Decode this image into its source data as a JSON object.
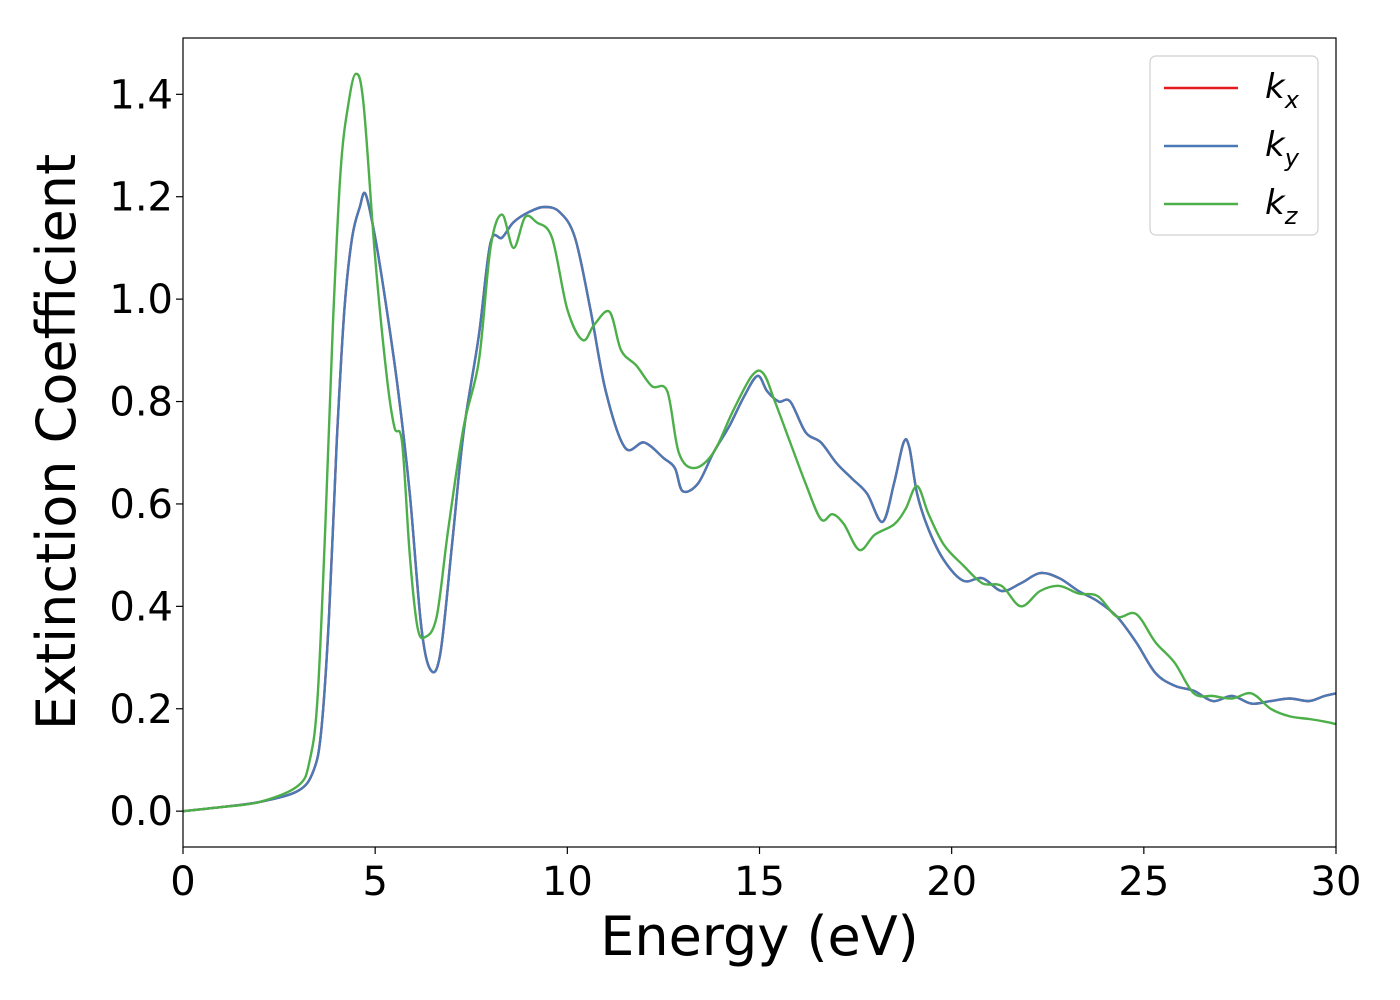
{
  "chart_data": {
    "type": "line",
    "title": "",
    "xlabel": "Energy (eV)",
    "ylabel": "Extinction Coefficient",
    "xlim": [
      0,
      30
    ],
    "ylim": [
      -0.07,
      1.51
    ],
    "xticks": [
      0,
      5,
      10,
      15,
      20,
      25,
      30
    ],
    "xtick_labels": [
      "0",
      "5",
      "10",
      "15",
      "20",
      "25",
      "30"
    ],
    "yticks": [
      0.0,
      0.2,
      0.4,
      0.6,
      0.8,
      1.0,
      1.2,
      1.4
    ],
    "ytick_labels": [
      "0.0",
      "0.2",
      "0.4",
      "0.6",
      "0.8",
      "1.0",
      "1.2",
      "1.4"
    ],
    "grid": false,
    "legend_position": "top-right",
    "series": [
      {
        "name": "k_x",
        "label_main": "k",
        "label_sub": "x",
        "color": "#e41a1c",
        "x": [
          0,
          1,
          2,
          3,
          3.4,
          3.6,
          3.8,
          4.0,
          4.2,
          4.4,
          4.6,
          4.75,
          5.0,
          5.3,
          5.6,
          5.9,
          6.2,
          6.45,
          6.7,
          7.0,
          7.3,
          7.7,
          8.0,
          8.3,
          8.6,
          9.0,
          9.4,
          9.8,
          10.2,
          10.6,
          11.0,
          11.5,
          12.0,
          12.5,
          12.8,
          13.0,
          13.4,
          13.8,
          14.2,
          14.6,
          14.95,
          15.2,
          15.5,
          15.8,
          16.2,
          16.6,
          17.0,
          17.4,
          17.8,
          18.2,
          18.5,
          18.75,
          18.9,
          19.1,
          19.4,
          19.8,
          20.3,
          20.8,
          21.3,
          21.8,
          22.3,
          22.8,
          23.3,
          23.8,
          24.3,
          24.8,
          25.3,
          25.8,
          26.3,
          26.8,
          27.3,
          27.8,
          28.3,
          28.8,
          29.3,
          29.7,
          30.0
        ],
        "y": [
          0.0,
          0.008,
          0.018,
          0.04,
          0.08,
          0.16,
          0.38,
          0.72,
          0.98,
          1.12,
          1.18,
          1.205,
          1.12,
          0.98,
          0.82,
          0.62,
          0.36,
          0.275,
          0.31,
          0.52,
          0.74,
          0.93,
          1.11,
          1.12,
          1.15,
          1.17,
          1.18,
          1.17,
          1.12,
          0.98,
          0.82,
          0.71,
          0.72,
          0.69,
          0.67,
          0.625,
          0.64,
          0.7,
          0.75,
          0.81,
          0.85,
          0.82,
          0.8,
          0.8,
          0.74,
          0.72,
          0.68,
          0.65,
          0.62,
          0.565,
          0.64,
          0.72,
          0.71,
          0.62,
          0.55,
          0.49,
          0.45,
          0.455,
          0.43,
          0.445,
          0.465,
          0.455,
          0.43,
          0.41,
          0.38,
          0.33,
          0.27,
          0.245,
          0.235,
          0.215,
          0.225,
          0.21,
          0.215,
          0.22,
          0.215,
          0.225,
          0.23
        ]
      },
      {
        "name": "k_y",
        "label_main": "k",
        "label_sub": "y",
        "color": "#4a7ab6",
        "x": [
          0,
          1,
          2,
          3,
          3.4,
          3.6,
          3.8,
          4.0,
          4.2,
          4.4,
          4.6,
          4.75,
          5.0,
          5.3,
          5.6,
          5.9,
          6.2,
          6.45,
          6.7,
          7.0,
          7.3,
          7.7,
          8.0,
          8.3,
          8.6,
          9.0,
          9.4,
          9.8,
          10.2,
          10.6,
          11.0,
          11.5,
          12.0,
          12.5,
          12.8,
          13.0,
          13.4,
          13.8,
          14.2,
          14.6,
          14.95,
          15.2,
          15.5,
          15.8,
          16.2,
          16.6,
          17.0,
          17.4,
          17.8,
          18.2,
          18.5,
          18.75,
          18.9,
          19.1,
          19.4,
          19.8,
          20.3,
          20.8,
          21.3,
          21.8,
          22.3,
          22.8,
          23.3,
          23.8,
          24.3,
          24.8,
          25.3,
          25.8,
          26.3,
          26.8,
          27.3,
          27.8,
          28.3,
          28.8,
          29.3,
          29.7,
          30.0
        ],
        "y": [
          0.0,
          0.008,
          0.018,
          0.04,
          0.08,
          0.16,
          0.38,
          0.72,
          0.98,
          1.12,
          1.18,
          1.205,
          1.12,
          0.98,
          0.82,
          0.62,
          0.36,
          0.275,
          0.31,
          0.52,
          0.74,
          0.93,
          1.11,
          1.12,
          1.15,
          1.17,
          1.18,
          1.17,
          1.12,
          0.98,
          0.82,
          0.71,
          0.72,
          0.69,
          0.67,
          0.625,
          0.64,
          0.7,
          0.75,
          0.81,
          0.85,
          0.82,
          0.8,
          0.8,
          0.74,
          0.72,
          0.68,
          0.65,
          0.62,
          0.565,
          0.64,
          0.72,
          0.71,
          0.62,
          0.55,
          0.49,
          0.45,
          0.455,
          0.43,
          0.445,
          0.465,
          0.455,
          0.43,
          0.41,
          0.38,
          0.33,
          0.27,
          0.245,
          0.235,
          0.215,
          0.225,
          0.21,
          0.215,
          0.22,
          0.215,
          0.225,
          0.23
        ]
      },
      {
        "name": "k_z",
        "label_main": "k",
        "label_sub": "z",
        "color": "#4daf4a",
        "x": [
          0,
          1,
          2,
          3,
          3.3,
          3.5,
          3.7,
          3.9,
          4.1,
          4.3,
          4.5,
          4.7,
          5.0,
          5.3,
          5.5,
          5.7,
          5.9,
          6.1,
          6.3,
          6.6,
          6.9,
          7.3,
          7.7,
          8.0,
          8.3,
          8.6,
          8.9,
          9.2,
          9.6,
          10.0,
          10.4,
          10.7,
          11.1,
          11.4,
          11.8,
          12.2,
          12.6,
          12.9,
          13.3,
          13.8,
          14.3,
          14.8,
          15.1,
          15.4,
          15.8,
          16.2,
          16.6,
          16.9,
          17.2,
          17.6,
          18.0,
          18.5,
          18.8,
          19.1,
          19.4,
          19.8,
          20.3,
          20.8,
          21.3,
          21.8,
          22.3,
          22.8,
          23.3,
          23.8,
          24.3,
          24.8,
          25.3,
          25.8,
          26.3,
          26.8,
          27.3,
          27.8,
          28.3,
          28.8,
          29.3,
          29.7,
          30.0
        ],
        "y": [
          0.0,
          0.008,
          0.018,
          0.05,
          0.1,
          0.22,
          0.55,
          0.95,
          1.25,
          1.38,
          1.44,
          1.38,
          1.08,
          0.85,
          0.75,
          0.72,
          0.5,
          0.36,
          0.34,
          0.38,
          0.55,
          0.75,
          0.88,
          1.1,
          1.165,
          1.1,
          1.16,
          1.15,
          1.12,
          0.98,
          0.92,
          0.95,
          0.975,
          0.9,
          0.87,
          0.83,
          0.82,
          0.7,
          0.67,
          0.7,
          0.78,
          0.85,
          0.855,
          0.8,
          0.72,
          0.64,
          0.57,
          0.58,
          0.56,
          0.51,
          0.54,
          0.56,
          0.59,
          0.635,
          0.58,
          0.52,
          0.48,
          0.445,
          0.44,
          0.4,
          0.43,
          0.44,
          0.425,
          0.42,
          0.38,
          0.385,
          0.33,
          0.29,
          0.23,
          0.225,
          0.22,
          0.23,
          0.2,
          0.185,
          0.18,
          0.175,
          0.17
        ]
      }
    ]
  }
}
